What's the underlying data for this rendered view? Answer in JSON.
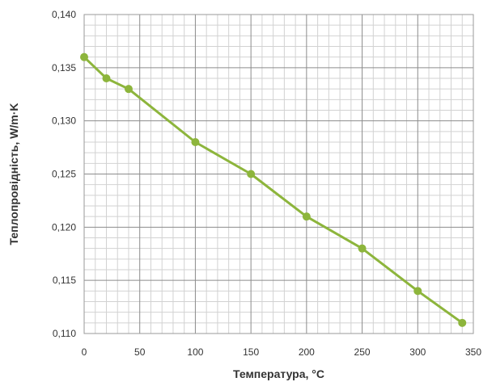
{
  "chart_data": {
    "type": "line",
    "title": "",
    "xlabel": "Температура, °C",
    "ylabel": "Теплопровідність, W/m·K",
    "xlim": [
      0,
      350
    ],
    "ylim": [
      0.11,
      0.14
    ],
    "x_ticks": [
      0,
      50,
      100,
      150,
      200,
      250,
      300,
      350
    ],
    "x_tick_labels": [
      "0",
      "50",
      "100",
      "150",
      "200",
      "250",
      "300",
      "350"
    ],
    "y_ticks": [
      0.11,
      0.115,
      0.12,
      0.125,
      0.13,
      0.135,
      0.14
    ],
    "y_tick_labels": [
      "0,110",
      "0,115",
      "0,120",
      "0,125",
      "0,130",
      "0,135",
      "0,140"
    ],
    "grid": true,
    "minor_grid": true,
    "legend": "none",
    "series": [
      {
        "color": "#8db53c",
        "x": [
          0,
          20,
          40,
          100,
          150,
          200,
          250,
          300,
          340
        ],
        "y": [
          0.136,
          0.134,
          0.133,
          0.128,
          0.125,
          0.121,
          0.118,
          0.114,
          0.111
        ]
      }
    ]
  }
}
